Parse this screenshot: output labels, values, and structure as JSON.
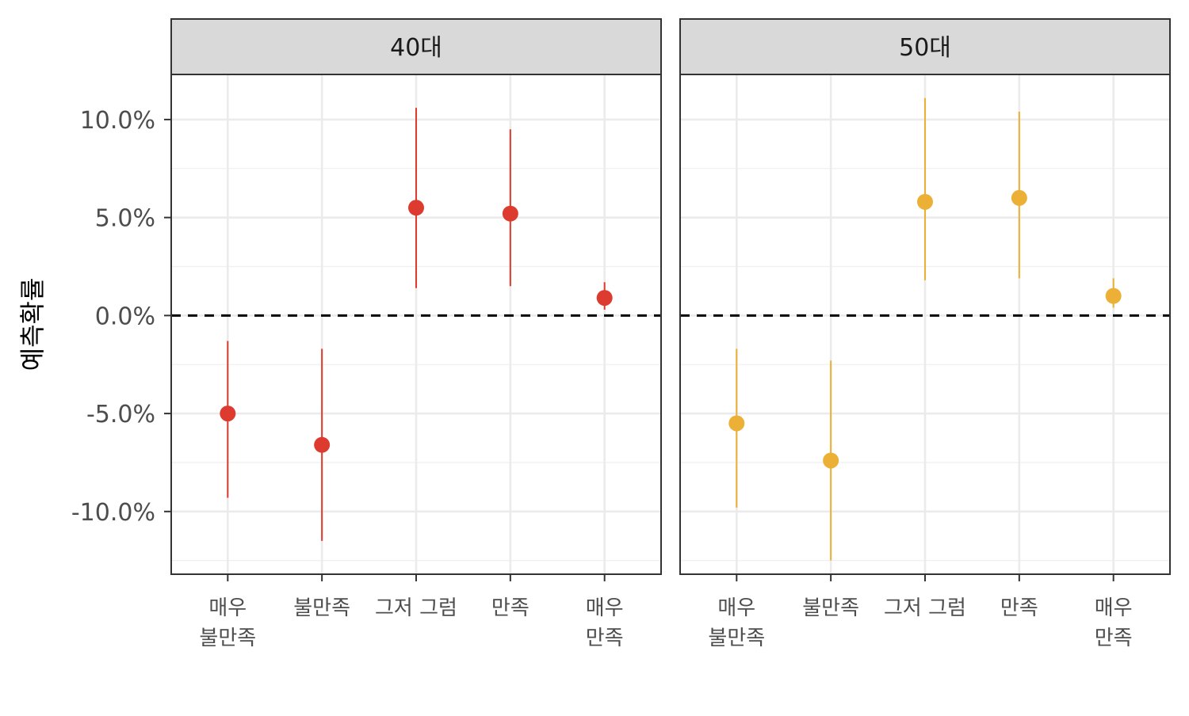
{
  "chart_data": {
    "type": "scatter",
    "ylabel": "예측확률",
    "xlabel": "",
    "ylim": [
      -13.2,
      12.3
    ],
    "y_ticks": [
      10.0,
      5.0,
      0.0,
      -5.0,
      -10.0
    ],
    "y_tick_labels": [
      "10.0%",
      "5.0%",
      "0.0%",
      "-5.0%",
      "-10.0%"
    ],
    "reference_line": 0.0,
    "categories": [
      "매우\n불만족",
      "불만족",
      "그저 그럼",
      "만족",
      "매우\n만족"
    ],
    "panels": [
      {
        "label": "40대",
        "color": "#dd3b2f",
        "values": [
          -5.0,
          -6.6,
          5.5,
          5.2,
          0.9
        ],
        "lower": [
          -9.3,
          -11.5,
          1.4,
          1.5,
          0.3
        ],
        "upper": [
          -1.3,
          -1.7,
          10.6,
          9.5,
          1.7
        ]
      },
      {
        "label": "50대",
        "color": "#ebb035",
        "values": [
          -5.5,
          -7.4,
          5.8,
          6.0,
          1.0
        ],
        "lower": [
          -9.8,
          -12.5,
          1.8,
          1.9,
          0.4
        ],
        "upper": [
          -1.7,
          -2.3,
          11.1,
          10.4,
          1.9
        ]
      }
    ]
  }
}
